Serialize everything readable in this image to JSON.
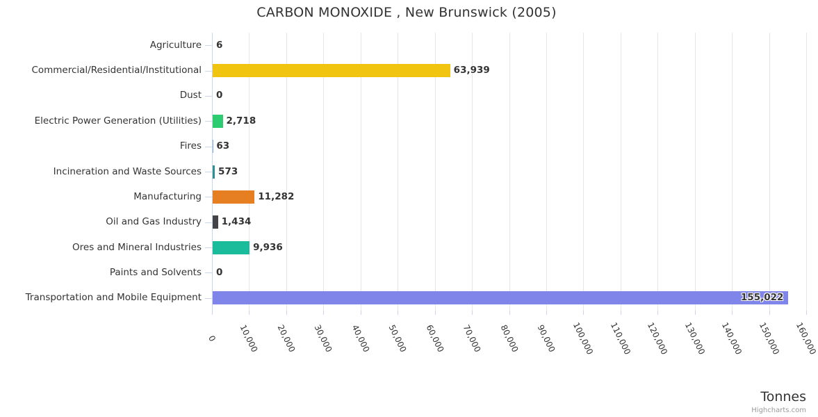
{
  "title": {
    "text": "CARBON MONOXIDE , New Brunswick (2005)"
  },
  "credits": {
    "text": "Highcharts.com",
    "color": "#999999"
  },
  "chart_data": {
    "type": "bar",
    "orientation": "horizontal",
    "title": "CARBON MONOXIDE , New Brunswick (2005)",
    "categories": [
      "Agriculture",
      "Commercial/Residential/Institutional",
      "Dust",
      "Electric Power Generation (Utilities)",
      "Fires",
      "Incineration and Waste Sources",
      "Manufacturing",
      "Oil and Gas Industry",
      "Ores and Mineral Industries",
      "Paints and Solvents",
      "Transportation and Mobile Equipment"
    ],
    "values": [
      6,
      63939,
      0,
      2718,
      63,
      573,
      11282,
      1434,
      9936,
      0,
      155022
    ],
    "value_labels": [
      "6",
      "63,939",
      "0",
      "2,718",
      "63",
      "573",
      "11,282",
      "1,434",
      "9,936",
      "0",
      "155,022"
    ],
    "bar_colors": [
      "#7cb5ec",
      "#f1c40f",
      "#7cb5ec",
      "#2ecc71",
      "#7cb5ec",
      "#2f9093",
      "#e67e22",
      "#434348",
      "#1abc9c",
      "#7cb5ec",
      "#8085e9"
    ],
    "xlabel": "Tonnes",
    "ylabel": "",
    "xlim": [
      0,
      160000
    ],
    "x_tick_step": 10000,
    "x_tick_labels": [
      "0",
      "10,000",
      "20,000",
      "30,000",
      "40,000",
      "50,000",
      "60,000",
      "70,000",
      "80,000",
      "90,000",
      "100,000",
      "110,000",
      "120,000",
      "130,000",
      "140,000",
      "150,000",
      "160,000"
    ],
    "grid": true,
    "legend": false,
    "colors": {
      "grid": "#e6e6e6",
      "axis_line": "#ccd6eb",
      "tick": "#ccd6eb",
      "text": "#333333",
      "data_label": "#333333"
    }
  }
}
